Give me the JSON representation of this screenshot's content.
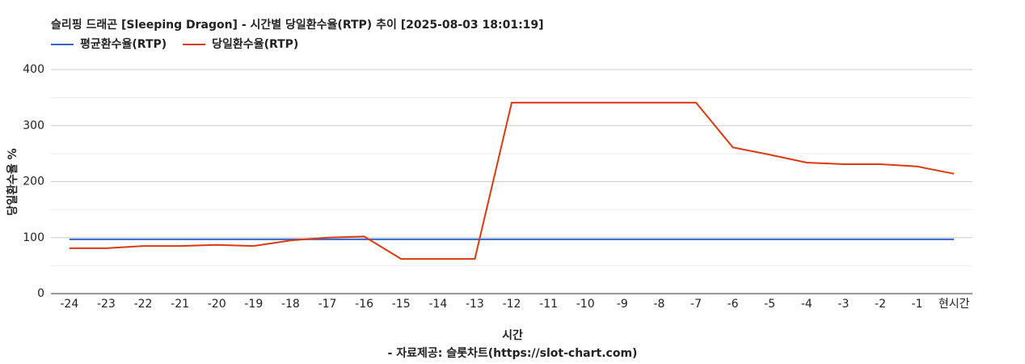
{
  "chart_data": {
    "type": "line",
    "title": "슬리핑 드래곤 [Sleeping Dragon] - 시간별 당일환수율(RTP) 추이 [2025-08-03 18:01:19]",
    "x_label": "시간",
    "y_label": "당일환수율 %",
    "footer": "- 자료제공: 슬롯차트(https://slot-chart.com)",
    "categories": [
      "-24",
      "-23",
      "-22",
      "-21",
      "-20",
      "-19",
      "-18",
      "-17",
      "-16",
      "-15",
      "-14",
      "-13",
      "-12",
      "-11",
      "-10",
      "-9",
      "-8",
      "-7",
      "-6",
      "-5",
      "-4",
      "-3",
      "-2",
      "-1",
      "현시간"
    ],
    "series": [
      {
        "name": "평균환수율(RTP)",
        "color": "#3366cc",
        "values": [
          97,
          97,
          97,
          97,
          97,
          97,
          97,
          97,
          97,
          97,
          97,
          97,
          97,
          97,
          97,
          97,
          97,
          97,
          97,
          97,
          97,
          97,
          97,
          97,
          97
        ]
      },
      {
        "name": "당일환수율(RTP)",
        "color": "#dc3912",
        "values": [
          81,
          81,
          85,
          85,
          87,
          85,
          95,
          100,
          102,
          62,
          62,
          62,
          341,
          341,
          341,
          341,
          341,
          341,
          261,
          248,
          234,
          231,
          231,
          227,
          214
        ]
      }
    ],
    "ylim": [
      0,
      400
    ],
    "yticks": [
      0,
      100,
      200,
      300,
      400
    ],
    "minor_yticks": [
      50,
      150,
      250,
      350
    ],
    "grid": true,
    "legend": "top-left"
  }
}
